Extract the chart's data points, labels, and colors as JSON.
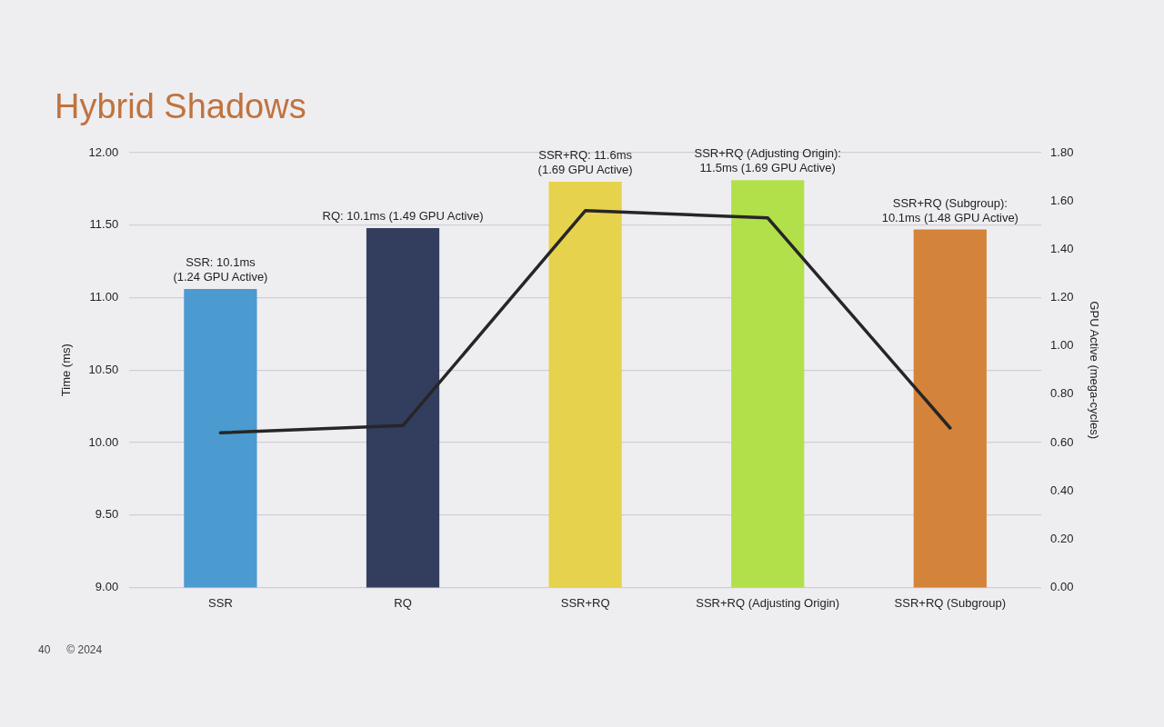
{
  "chart_data": {
    "type": "bar",
    "title": "Hybrid Shadows",
    "ylabel": "Time (ms)",
    "y2label": "GPU Active (mega-cycles)",
    "categories": [
      "SSR",
      "RQ",
      "SSR+RQ",
      "SSR+RQ (Adjusting Origin)",
      "SSR+RQ (Subgroup)"
    ],
    "series": [
      {
        "colors": [
          "#4b9ad0",
          "#333d5e",
          "#e6d24c",
          "#b2e04a",
          "#d4833a"
        ],
        "values": [
          11.06,
          11.48,
          11.8,
          11.81,
          11.47
        ],
        "value_labels": [
          "SSR: 10.1ms\n(1.24 GPU Active)",
          "RQ: 10.1ms (1.49 GPU Active)",
          "SSR+RQ: 11.6ms\n(1.69 GPU Active)",
          "SSR+RQ (Adjusting Origin):\n11.5ms (1.69 GPU Active)",
          "SSR+RQ (Subgroup):\n10.1ms (1.48 GPU Active)"
        ]
      },
      {
        "type": "line",
        "axis": "y2",
        "color": "#262626",
        "values": [
          0.64,
          0.67,
          1.56,
          1.53,
          0.66
        ]
      }
    ],
    "ylim": [
      9,
      12
    ],
    "yticks": [
      {
        "value": 9,
        "label": "9.00"
      },
      {
        "value": 9.5,
        "label": "9.50"
      },
      {
        "value": 10,
        "label": "10.00"
      },
      {
        "value": 10.5,
        "label": "10.50"
      },
      {
        "value": 11,
        "label": "11.00"
      },
      {
        "value": 11.5,
        "label": "11.50"
      },
      {
        "value": 12,
        "label": "12.00"
      }
    ],
    "y2lim": [
      0,
      1.8
    ],
    "y2ticks": [
      {
        "value": 0,
        "label": "0.00"
      },
      {
        "value": 0.2,
        "label": "0.20"
      },
      {
        "value": 0.4,
        "label": "0.40"
      },
      {
        "value": 0.6,
        "label": "0.60"
      },
      {
        "value": 0.8,
        "label": "0.80"
      },
      {
        "value": 1,
        "label": "1.00"
      },
      {
        "value": 1.2,
        "label": "1.20"
      },
      {
        "value": 1.4,
        "label": "1.40"
      },
      {
        "value": 1.6,
        "label": "1.60"
      },
      {
        "value": 1.8,
        "label": "1.80"
      }
    ],
    "grid": "y",
    "legend": false,
    "marker": "none",
    "line_style": "solid",
    "annotations": [
      "40",
      "© 2024"
    ]
  }
}
